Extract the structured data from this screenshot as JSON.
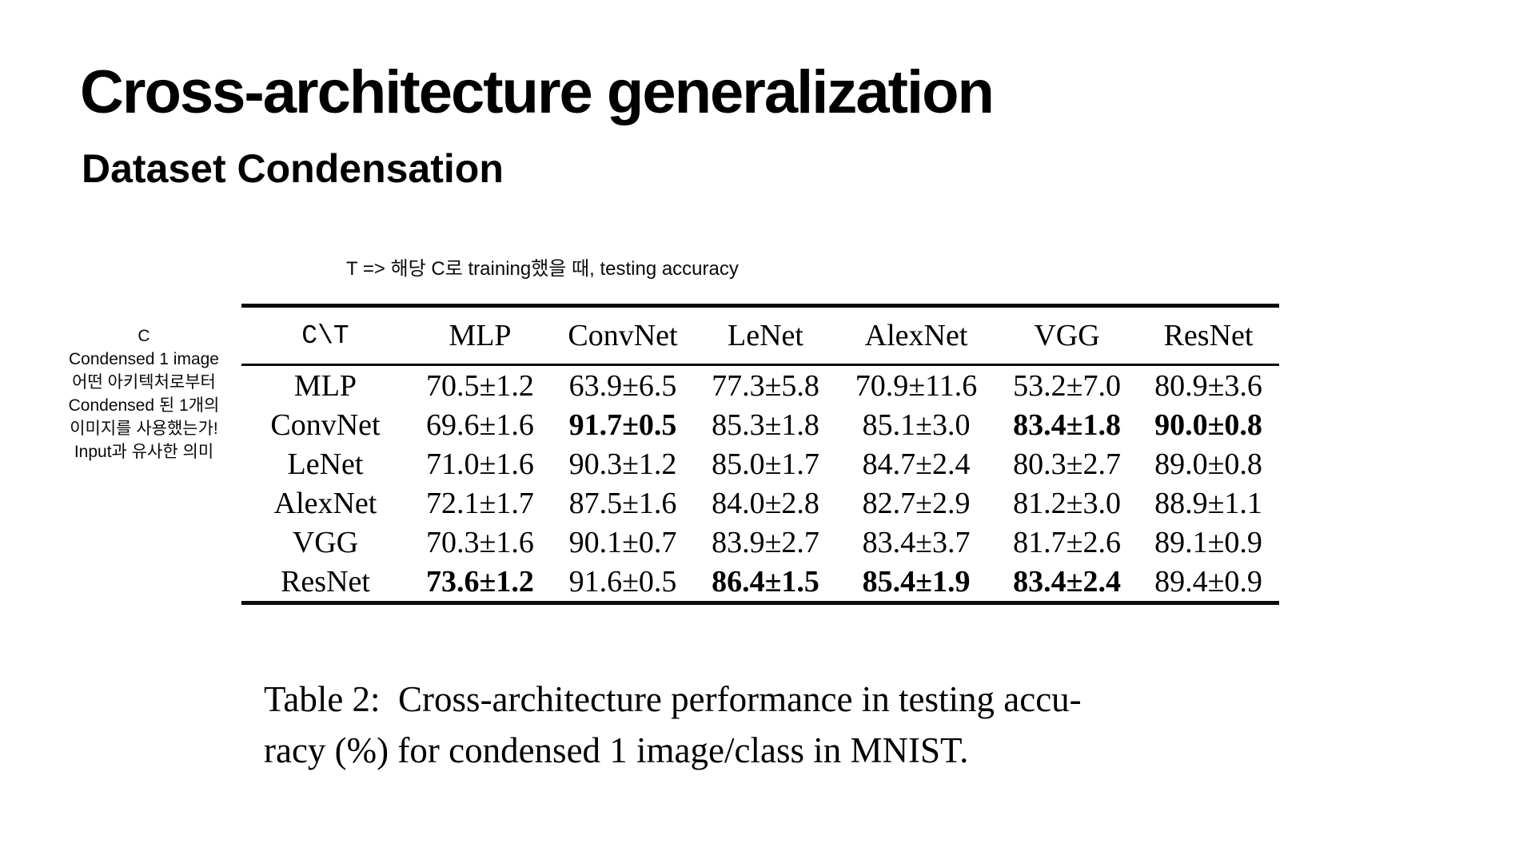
{
  "slide": {
    "title": "Cross-architecture generalization",
    "subtitle": "Dataset Condensation"
  },
  "annotations": {
    "top_note": "T => 해당 C로 training했을 때, testing accuracy",
    "left_note_lines": [
      "C",
      "Condensed 1 image",
      "어떤 아키텍처로부터",
      "Condensed 된 1개의",
      "이미지를 사용했는가!",
      "Input과 유사한 의미"
    ]
  },
  "chart_data": {
    "type": "table",
    "title": "Cross-architecture performance in testing accuracy (%) for condensed 1 image/class in MNIST",
    "corner_label": "C\\T",
    "columns": [
      "MLP",
      "ConvNet",
      "LeNet",
      "AlexNet",
      "VGG",
      "ResNet"
    ],
    "rows": [
      {
        "label": "MLP",
        "cells": [
          {
            "v": "70.5±1.2",
            "b": false
          },
          {
            "v": "63.9±6.5",
            "b": false
          },
          {
            "v": "77.3±5.8",
            "b": false
          },
          {
            "v": "70.9±11.6",
            "b": false
          },
          {
            "v": "53.2±7.0",
            "b": false
          },
          {
            "v": "80.9±3.6",
            "b": false
          }
        ]
      },
      {
        "label": "ConvNet",
        "cells": [
          {
            "v": "69.6±1.6",
            "b": false
          },
          {
            "v": "91.7±0.5",
            "b": true
          },
          {
            "v": "85.3±1.8",
            "b": false
          },
          {
            "v": "85.1±3.0",
            "b": false
          },
          {
            "v": "83.4±1.8",
            "b": true
          },
          {
            "v": "90.0±0.8",
            "b": true
          }
        ]
      },
      {
        "label": "LeNet",
        "cells": [
          {
            "v": "71.0±1.6",
            "b": false
          },
          {
            "v": "90.3±1.2",
            "b": false
          },
          {
            "v": "85.0±1.7",
            "b": false
          },
          {
            "v": "84.7±2.4",
            "b": false
          },
          {
            "v": "80.3±2.7",
            "b": false
          },
          {
            "v": "89.0±0.8",
            "b": false
          }
        ]
      },
      {
        "label": "AlexNet",
        "cells": [
          {
            "v": "72.1±1.7",
            "b": false
          },
          {
            "v": "87.5±1.6",
            "b": false
          },
          {
            "v": "84.0±2.8",
            "b": false
          },
          {
            "v": "82.7±2.9",
            "b": false
          },
          {
            "v": "81.2±3.0",
            "b": false
          },
          {
            "v": "88.9±1.1",
            "b": false
          }
        ]
      },
      {
        "label": "VGG",
        "cells": [
          {
            "v": "70.3±1.6",
            "b": false
          },
          {
            "v": "90.1±0.7",
            "b": false
          },
          {
            "v": "83.9±2.7",
            "b": false
          },
          {
            "v": "83.4±3.7",
            "b": false
          },
          {
            "v": "81.7±2.6",
            "b": false
          },
          {
            "v": "89.1±0.9",
            "b": false
          }
        ]
      },
      {
        "label": "ResNet",
        "cells": [
          {
            "v": "73.6±1.2",
            "b": true
          },
          {
            "v": "91.6±0.5",
            "b": false
          },
          {
            "v": "86.4±1.5",
            "b": true
          },
          {
            "v": "85.4±1.9",
            "b": true
          },
          {
            "v": "83.4±2.4",
            "b": true
          },
          {
            "v": "89.4±0.9",
            "b": false
          }
        ]
      }
    ]
  },
  "caption": {
    "line1": "Table 2:  Cross-architecture performance in testing accu-",
    "line2": "racy (%) for condensed 1 image/class in MNIST."
  }
}
